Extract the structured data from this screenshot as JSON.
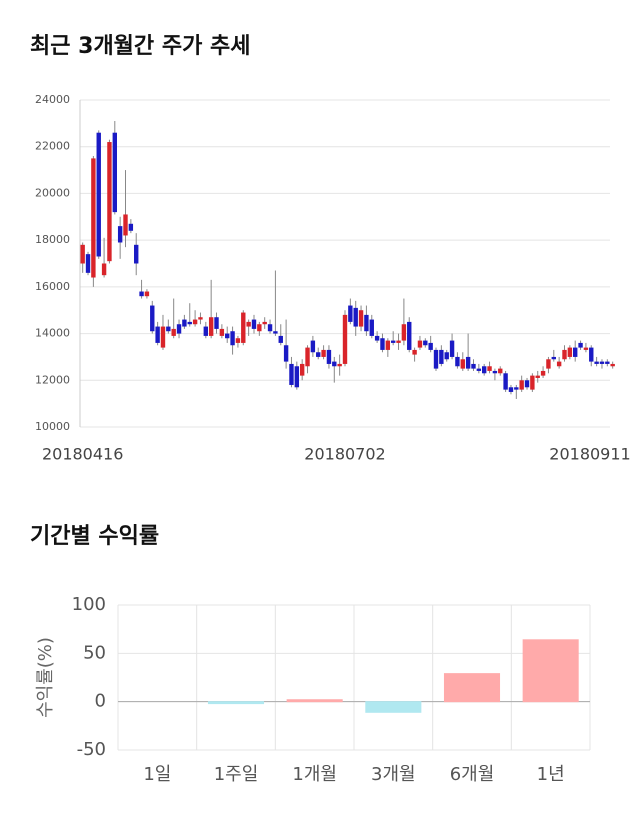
{
  "chart_data": [
    {
      "type": "candlestick",
      "title": "최근 3개월간 주가 추세",
      "up_color": "#d9242a",
      "down_color": "#1a1ac4",
      "ylim": [
        10000,
        24000
      ],
      "yticks": [
        10000,
        12000,
        14000,
        16000,
        18000,
        20000,
        22000,
        24000
      ],
      "grid": true,
      "xlim": [
        -0.5,
        98.5
      ],
      "xticks": [
        {
          "value": 0,
          "label": "20180416"
        },
        {
          "value": 49,
          "label": "20180702"
        },
        {
          "value": 95,
          "label": "20180911"
        }
      ],
      "candles": [
        [
          17000,
          17900,
          16600,
          17800
        ],
        [
          17400,
          17500,
          16500,
          16600
        ],
        [
          16400,
          21600,
          16000,
          21500
        ],
        [
          22600,
          22700,
          17200,
          17300
        ],
        [
          16500,
          18100,
          16400,
          17000
        ],
        [
          17100,
          22300,
          17000,
          22200
        ],
        [
          22600,
          23100,
          19100,
          19200
        ],
        [
          18600,
          19000,
          17200,
          17900
        ],
        [
          18200,
          21000,
          17700,
          19100
        ],
        [
          18700,
          18900,
          18300,
          18400
        ],
        [
          17800,
          18300,
          16500,
          17000
        ],
        [
          15800,
          16300,
          15500,
          15600
        ],
        [
          15600,
          15900,
          15500,
          15800
        ],
        [
          15200,
          15400,
          14000,
          14100
        ],
        [
          14300,
          14500,
          13500,
          13600
        ],
        [
          13400,
          14800,
          13300,
          14300
        ],
        [
          14300,
          14600,
          14000,
          14100
        ],
        [
          13900,
          15500,
          13800,
          14200
        ],
        [
          14400,
          14600,
          13800,
          14000
        ],
        [
          14600,
          14800,
          14200,
          14300
        ],
        [
          14500,
          15300,
          14300,
          14400
        ],
        [
          14400,
          15000,
          14300,
          14600
        ],
        [
          14600,
          14900,
          14400,
          14700
        ],
        [
          14300,
          14500,
          13800,
          13900
        ],
        [
          13900,
          16300,
          13800,
          14700
        ],
        [
          14700,
          14900,
          14000,
          14200
        ],
        [
          13900,
          14400,
          13800,
          14200
        ],
        [
          14000,
          14300,
          13600,
          13800
        ],
        [
          14100,
          14300,
          13100,
          13500
        ],
        [
          13600,
          13900,
          13400,
          13800
        ],
        [
          13600,
          15000,
          13500,
          14900
        ],
        [
          14300,
          14600,
          13900,
          14500
        ],
        [
          14600,
          14800,
          14000,
          14200
        ],
        [
          14100,
          14500,
          13900,
          14400
        ],
        [
          14400,
          14700,
          14200,
          14500
        ],
        [
          14400,
          14600,
          14000,
          14100
        ],
        [
          14100,
          16700,
          13900,
          14000
        ],
        [
          13900,
          14400,
          13500,
          13600
        ],
        [
          13500,
          14600,
          12500,
          12800
        ],
        [
          12700,
          13000,
          11700,
          11800
        ],
        [
          12600,
          12800,
          11600,
          11700
        ],
        [
          12200,
          12900,
          12000,
          12700
        ],
        [
          12600,
          13500,
          12300,
          13400
        ],
        [
          13700,
          13900,
          13000,
          13200
        ],
        [
          13200,
          13400,
          12900,
          13000
        ],
        [
          13000,
          13500,
          12900,
          13300
        ],
        [
          13300,
          13500,
          12500,
          12700
        ],
        [
          12800,
          13000,
          11900,
          12600
        ],
        [
          12600,
          13100,
          12200,
          12700
        ],
        [
          12700,
          15000,
          12600,
          14800
        ],
        [
          15200,
          15500,
          14400,
          14500
        ],
        [
          15100,
          15400,
          13900,
          14300
        ],
        [
          14300,
          15200,
          14100,
          15000
        ],
        [
          14800,
          15200,
          13900,
          14100
        ],
        [
          14600,
          14800,
          13800,
          13900
        ],
        [
          13900,
          14100,
          13600,
          13700
        ],
        [
          13800,
          14000,
          13200,
          13300
        ],
        [
          13300,
          13800,
          13000,
          13700
        ],
        [
          13700,
          14100,
          13500,
          13600
        ],
        [
          13600,
          14000,
          13300,
          13700
        ],
        [
          13700,
          15500,
          13500,
          14400
        ],
        [
          14500,
          14700,
          13200,
          13300
        ],
        [
          13100,
          13400,
          12800,
          13300
        ],
        [
          13400,
          13900,
          13300,
          13700
        ],
        [
          13700,
          13800,
          13400,
          13500
        ],
        [
          13600,
          13900,
          13200,
          13300
        ],
        [
          13300,
          13400,
          12400,
          12500
        ],
        [
          13300,
          13500,
          12600,
          12700
        ],
        [
          13200,
          13300,
          12800,
          12900
        ],
        [
          13700,
          14000,
          12900,
          13000
        ],
        [
          13000,
          13200,
          12500,
          12600
        ],
        [
          12500,
          13200,
          12400,
          12900
        ],
        [
          13000,
          14000,
          12400,
          12500
        ],
        [
          12700,
          12900,
          12400,
          12500
        ],
        [
          12500,
          12700,
          12300,
          12400
        ],
        [
          12600,
          12700,
          12200,
          12300
        ],
        [
          12400,
          12800,
          12300,
          12600
        ],
        [
          12400,
          12500,
          12000,
          12300
        ],
        [
          12300,
          12600,
          12200,
          12500
        ],
        [
          12300,
          12400,
          11500,
          11600
        ],
        [
          11700,
          11800,
          11400,
          11500
        ],
        [
          11700,
          11800,
          11200,
          11600
        ],
        [
          11600,
          12200,
          11500,
          12000
        ],
        [
          12000,
          12100,
          11600,
          11700
        ],
        [
          11600,
          12300,
          11500,
          12200
        ],
        [
          12100,
          12400,
          11900,
          12200
        ],
        [
          12200,
          12600,
          12100,
          12400
        ],
        [
          12500,
          13000,
          12300,
          12900
        ],
        [
          13000,
          13300,
          12800,
          12900
        ],
        [
          12600,
          13000,
          12500,
          12800
        ],
        [
          12900,
          13500,
          12800,
          13300
        ],
        [
          13000,
          13500,
          12900,
          13400
        ],
        [
          13400,
          13700,
          12800,
          13000
        ],
        [
          13600,
          13700,
          13300,
          13400
        ],
        [
          13300,
          13600,
          13200,
          13400
        ],
        [
          13400,
          13500,
          12600,
          12800
        ],
        [
          12800,
          13000,
          12600,
          12700
        ],
        [
          12800,
          12900,
          12500,
          12700
        ],
        [
          12800,
          12900,
          12600,
          12700
        ],
        [
          12600,
          12800,
          12500,
          12700
        ]
      ]
    },
    {
      "type": "bar",
      "title": "기간별 수익률",
      "y_label": "수익률(%)",
      "categories": [
        "1일",
        "1주일",
        "1개월",
        "3개월",
        "6개월",
        "1년"
      ],
      "values": [
        0,
        -2,
        2,
        -11,
        29,
        64
      ],
      "colors": [
        "#ffaaaa",
        "#b0e8f0",
        "#ffaaaa",
        "#b0e8f0",
        "#ffaaaa",
        "#ffaaaa"
      ],
      "ylim": [
        -50,
        100
      ],
      "yticks": [
        -50,
        0,
        50,
        100
      ],
      "grid": true
    }
  ]
}
